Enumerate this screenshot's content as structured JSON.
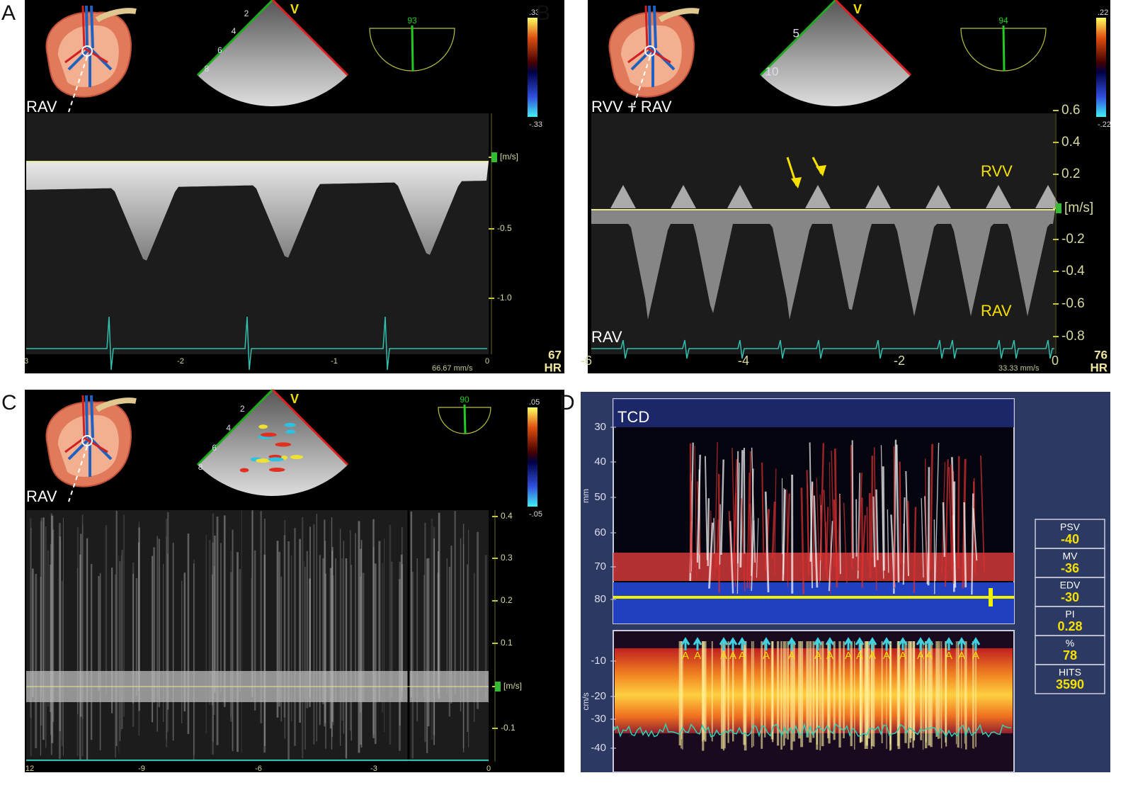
{
  "panels": [
    {
      "label": "A",
      "site": "RAV",
      "probe_mark": "V",
      "angle": "93",
      "scale_top": ".33",
      "scale_bottom": "-.33",
      "depth_ticks": [
        "2",
        "4",
        "6",
        "8"
      ],
      "velocity_ticks": [
        "[m/s]",
        "-0.5",
        "-1.0"
      ],
      "time_ticks": [
        "3",
        "-2",
        "-1",
        "0"
      ],
      "heart_rate": "67",
      "hr_label": "HR",
      "sweep": "66.67 mm/s"
    },
    {
      "label": "B",
      "site": "RVV + RAV",
      "probe_mark": "V",
      "angle": "94",
      "scale_top": ".22",
      "scale_bottom": "-.22",
      "depth_ticks": [
        "5",
        "10"
      ],
      "velocity_ticks": [
        "0.6",
        "0.4",
        "0.2",
        "[m/s]",
        "-0.2",
        "-0.4",
        "-0.6",
        "-0.8"
      ],
      "time_ticks": [
        "-6",
        "-4",
        "-2",
        "0"
      ],
      "heart_rate": "76",
      "hr_label": "HR",
      "sweep": "33.33 mm/s",
      "annotations": [
        "RVV",
        "RAV"
      ],
      "bottom_site": "RAV"
    },
    {
      "label": "C",
      "site": "RAV",
      "probe_mark": "V",
      "angle": "90",
      "scale_top": ".05",
      "scale_bottom": "-.05",
      "depth_ticks": [
        "2",
        "4",
        "6",
        "8"
      ],
      "velocity_ticks": [
        "0.4",
        "0.3",
        "0.2",
        "0.1",
        "[m/s]",
        "-0.1"
      ],
      "time_ticks": [
        "12",
        "-9",
        "-6",
        "-3",
        "0"
      ]
    }
  ],
  "tcd": {
    "label": "D",
    "title": "TCD",
    "depth_unit": "mm",
    "depth_ticks": [
      "30",
      "40",
      "50",
      "60",
      "70",
      "80"
    ],
    "velocity_unit": "cm/s",
    "velocity_ticks": [
      "-10",
      "-20",
      "-30",
      "-40"
    ],
    "marker": "A",
    "measurements": [
      {
        "name": "PSV",
        "value": "-40"
      },
      {
        "name": "MV",
        "value": "-36"
      },
      {
        "name": "EDV",
        "value": "-30"
      },
      {
        "name": "PI",
        "value": "0.28"
      },
      {
        "name": "%",
        "value": "78"
      },
      {
        "name": "HITS",
        "value": "3590"
      }
    ]
  }
}
